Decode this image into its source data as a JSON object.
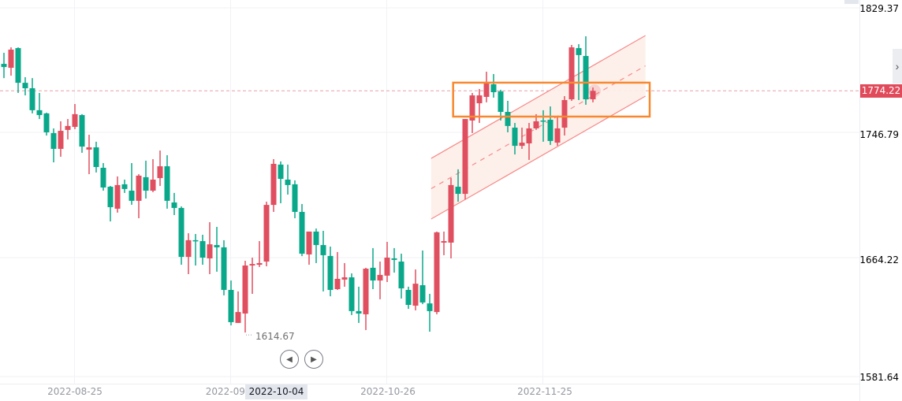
{
  "chart_data": {
    "type": "candlestick",
    "price_axis": {
      "ticks": [
        "1829.37",
        "1746.79",
        "1664.22",
        "1581.64"
      ],
      "tick_colors": [
        "#e04f5f",
        "#0aa88a",
        "#0aa88a",
        "#0aa88a"
      ],
      "last_price": "1774.22"
    },
    "time_axis": {
      "ticks": [
        {
          "bar": 10,
          "label": "2022-08-25"
        },
        {
          "bar": 32,
          "label": "2022-09-"
        },
        {
          "bar": 54,
          "label": "2022-10-26"
        },
        {
          "bar": 76,
          "label": "2022-11-25"
        }
      ],
      "crosshair_date": "2022-10-04"
    },
    "low_marker": {
      "bar": 34,
      "label": "1614.67"
    },
    "colors": {
      "up": "#e04f5f",
      "down": "#0aa88a",
      "channel": "#f78a8a",
      "highlight_box": "#f7882f"
    },
    "candles_ohlc": [
      [
        1792.0,
        1799.3,
        1782.6,
        1789.9
      ],
      [
        1789.4,
        1802.9,
        1784.2,
        1801.4
      ],
      [
        1802.4,
        1802.9,
        1772.8,
        1779.5
      ],
      [
        1779.5,
        1783.2,
        1771.2,
        1775.9
      ],
      [
        1775.9,
        1782.6,
        1759.3,
        1761.4
      ],
      [
        1761.4,
        1772.8,
        1755.6,
        1758.2
      ],
      [
        1759.3,
        1759.8,
        1744.7,
        1746.8
      ],
      [
        1746.3,
        1749.4,
        1727.0,
        1735.9
      ],
      [
        1735.9,
        1754.1,
        1730.7,
        1747.8
      ],
      [
        1748.4,
        1755.6,
        1742.1,
        1751.0
      ],
      [
        1750.4,
        1765.5,
        1748.9,
        1758.8
      ],
      [
        1758.2,
        1758.8,
        1733.3,
        1737.4
      ],
      [
        1735.4,
        1745.2,
        1719.2,
        1736.9
      ],
      [
        1736.9,
        1740.6,
        1720.3,
        1723.9
      ],
      [
        1723.4,
        1726.5,
        1708.3,
        1710.4
      ],
      [
        1710.9,
        1711.4,
        1688.0,
        1697.4
      ],
      [
        1696.4,
        1717.7,
        1693.8,
        1712.0
      ],
      [
        1712.5,
        1715.6,
        1706.8,
        1709.4
      ],
      [
        1708.3,
        1726.5,
        1699.0,
        1701.6
      ],
      [
        1701.6,
        1719.2,
        1690.1,
        1718.2
      ],
      [
        1717.2,
        1728.1,
        1703.1,
        1708.3
      ],
      [
        1708.3,
        1729.1,
        1707.3,
        1715.6
      ],
      [
        1716.6,
        1734.8,
        1711.4,
        1724.4
      ],
      [
        1724.4,
        1731.7,
        1696.4,
        1701.6
      ],
      [
        1700.5,
        1706.8,
        1692.2,
        1696.9
      ],
      [
        1696.9,
        1697.9,
        1659.4,
        1664.6
      ],
      [
        1664.6,
        1680.2,
        1653.2,
        1675.6
      ],
      [
        1675.6,
        1679.7,
        1658.9,
        1675.0
      ],
      [
        1675.0,
        1679.2,
        1659.4,
        1664.1
      ],
      [
        1663.6,
        1687.5,
        1653.2,
        1672.9
      ],
      [
        1672.4,
        1684.4,
        1654.8,
        1670.9
      ],
      [
        1670.9,
        1675.6,
        1639.2,
        1642.8
      ],
      [
        1642.8,
        1649.0,
        1619.4,
        1621.5
      ],
      [
        1621.0,
        1641.8,
        1621.0,
        1628.2
      ],
      [
        1627.2,
        1662.0,
        1614.67,
        1658.9
      ],
      [
        1658.9,
        1664.1,
        1640.2,
        1659.9
      ],
      [
        1659.4,
        1675.0,
        1657.9,
        1660.5
      ],
      [
        1661.5,
        1701.0,
        1658.4,
        1698.9
      ],
      [
        1698.9,
        1729.1,
        1694.3,
        1726.0
      ],
      [
        1725.5,
        1727.6,
        1700.0,
        1716.1
      ],
      [
        1715.6,
        1725.5,
        1705.7,
        1712.0
      ],
      [
        1712.5,
        1715.1,
        1690.1,
        1694.3
      ],
      [
        1694.3,
        1699.5,
        1665.1,
        1666.7
      ],
      [
        1666.2,
        1681.3,
        1659.4,
        1681.3
      ],
      [
        1681.3,
        1683.3,
        1660.5,
        1672.4
      ],
      [
        1672.4,
        1681.8,
        1641.8,
        1665.7
      ],
      [
        1665.2,
        1671.4,
        1638.6,
        1642.8
      ],
      [
        1643.3,
        1667.8,
        1642.8,
        1650.1
      ],
      [
        1649.6,
        1660.5,
        1644.9,
        1651.1
      ],
      [
        1651.1,
        1653.7,
        1626.2,
        1628.8
      ],
      [
        1628.8,
        1644.9,
        1621.0,
        1627.2
      ],
      [
        1626.7,
        1657.4,
        1616.3,
        1656.8
      ],
      [
        1657.4,
        1670.4,
        1643.3,
        1649.0
      ],
      [
        1649.0,
        1661.5,
        1636.6,
        1652.7
      ],
      [
        1652.2,
        1674.5,
        1648.0,
        1664.1
      ],
      [
        1663.6,
        1670.4,
        1654.2,
        1662.6
      ],
      [
        1661.5,
        1666.7,
        1637.1,
        1643.8
      ],
      [
        1642.8,
        1644.9,
        1630.3,
        1632.9
      ],
      [
        1632.4,
        1656.3,
        1629.3,
        1646.9
      ],
      [
        1645.9,
        1668.8,
        1633.4,
        1634.5
      ],
      [
        1633.9,
        1640.2,
        1615.2,
        1628.8
      ],
      [
        1628.2,
        1681.3,
        1626.7,
        1680.8
      ],
      [
        1674.0,
        1681.3,
        1665.7,
        1675.0
      ],
      [
        1674.0,
        1716.6,
        1663.6,
        1712.0
      ],
      [
        1710.9,
        1722.4,
        1701.0,
        1706.2
      ],
      [
        1706.2,
        1755.6,
        1702.6,
        1755.6
      ],
      [
        1754.6,
        1772.8,
        1746.3,
        1771.2
      ],
      [
        1766.0,
        1775.4,
        1753.0,
        1771.2
      ],
      [
        1770.2,
        1786.8,
        1766.6,
        1779.0
      ],
      [
        1778.5,
        1785.3,
        1769.7,
        1773.3
      ],
      [
        1773.8,
        1774.9,
        1754.6,
        1760.3
      ],
      [
        1760.3,
        1767.6,
        1746.8,
        1751.0
      ],
      [
        1749.9,
        1753.0,
        1732.2,
        1737.9
      ],
      [
        1737.9,
        1749.9,
        1735.9,
        1740.0
      ],
      [
        1739.5,
        1753.0,
        1728.6,
        1749.4
      ],
      [
        1749.4,
        1758.8,
        1748.4,
        1754.1
      ],
      [
        1754.6,
        1761.4,
        1740.6,
        1754.1
      ],
      [
        1755.1,
        1763.9,
        1738.5,
        1741.1
      ],
      [
        1740.0,
        1756.7,
        1737.9,
        1749.4
      ],
      [
        1749.9,
        1770.7,
        1744.7,
        1768.1
      ],
      [
        1768.6,
        1804.5,
        1767.6,
        1802.9
      ],
      [
        1802.4,
        1805.0,
        1768.1,
        1797.8
      ],
      [
        1797.2,
        1810.2,
        1765.0,
        1768.6
      ],
      [
        1768.6,
        1776.4,
        1766.6,
        1774.22
      ]
    ],
    "annotations": {
      "parallel_channel": {
        "start_bar": 60.2,
        "end_bar": 90.4,
        "upper": [
          1729.6,
          1810.7
        ],
        "lower": [
          1689.6,
          1770.7
        ]
      },
      "highlight_rectangle": {
        "start_bar": 63.3,
        "end_bar": 91.0,
        "top": 1779.6,
        "bottom": 1757.2
      }
    }
  },
  "nav": {
    "prev_icon": "skip-back-icon",
    "next_icon": "skip-forward-icon",
    "scroll_icon": "chevron-right-icon"
  }
}
